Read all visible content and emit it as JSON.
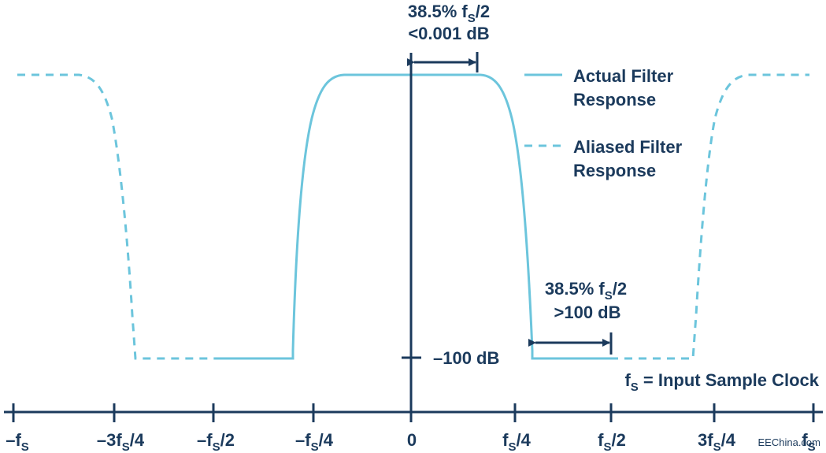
{
  "colors": {
    "axis": "#1b3a5c",
    "filter": "#6cc5dc"
  },
  "legend": {
    "actual": [
      "Actual Filter",
      "Response"
    ],
    "aliased": [
      "Aliased Filter",
      "Response"
    ]
  },
  "annotations": {
    "passband": {
      "pct": "38.5% f",
      "sub": "S",
      "tail": "/2",
      "value": "<0.001 dB"
    },
    "stopband": {
      "pct": "38.5% f",
      "sub": "S",
      "tail": "/2",
      "value": ">100 dB"
    },
    "level": "–100 dB",
    "clock": {
      "f": "f",
      "sub": "S",
      "text": " = Input Sample Clock"
    }
  },
  "ticks": [
    {
      "pre": "–f",
      "sub": "S",
      "post": ""
    },
    {
      "pre": "–3f",
      "sub": "S",
      "post": "/4"
    },
    {
      "pre": "–f",
      "sub": "S",
      "post": "/2"
    },
    {
      "pre": "–f",
      "sub": "S",
      "post": "/4"
    },
    {
      "pre": "0",
      "sub": "",
      "post": ""
    },
    {
      "pre": "f",
      "sub": "S",
      "post": "/4"
    },
    {
      "pre": "f",
      "sub": "S",
      "post": "/2"
    },
    {
      "pre": "3f",
      "sub": "S",
      "post": "/4"
    },
    {
      "pre": "f",
      "sub": "S",
      "post": ""
    }
  ],
  "watermark": "EEChina.com"
}
